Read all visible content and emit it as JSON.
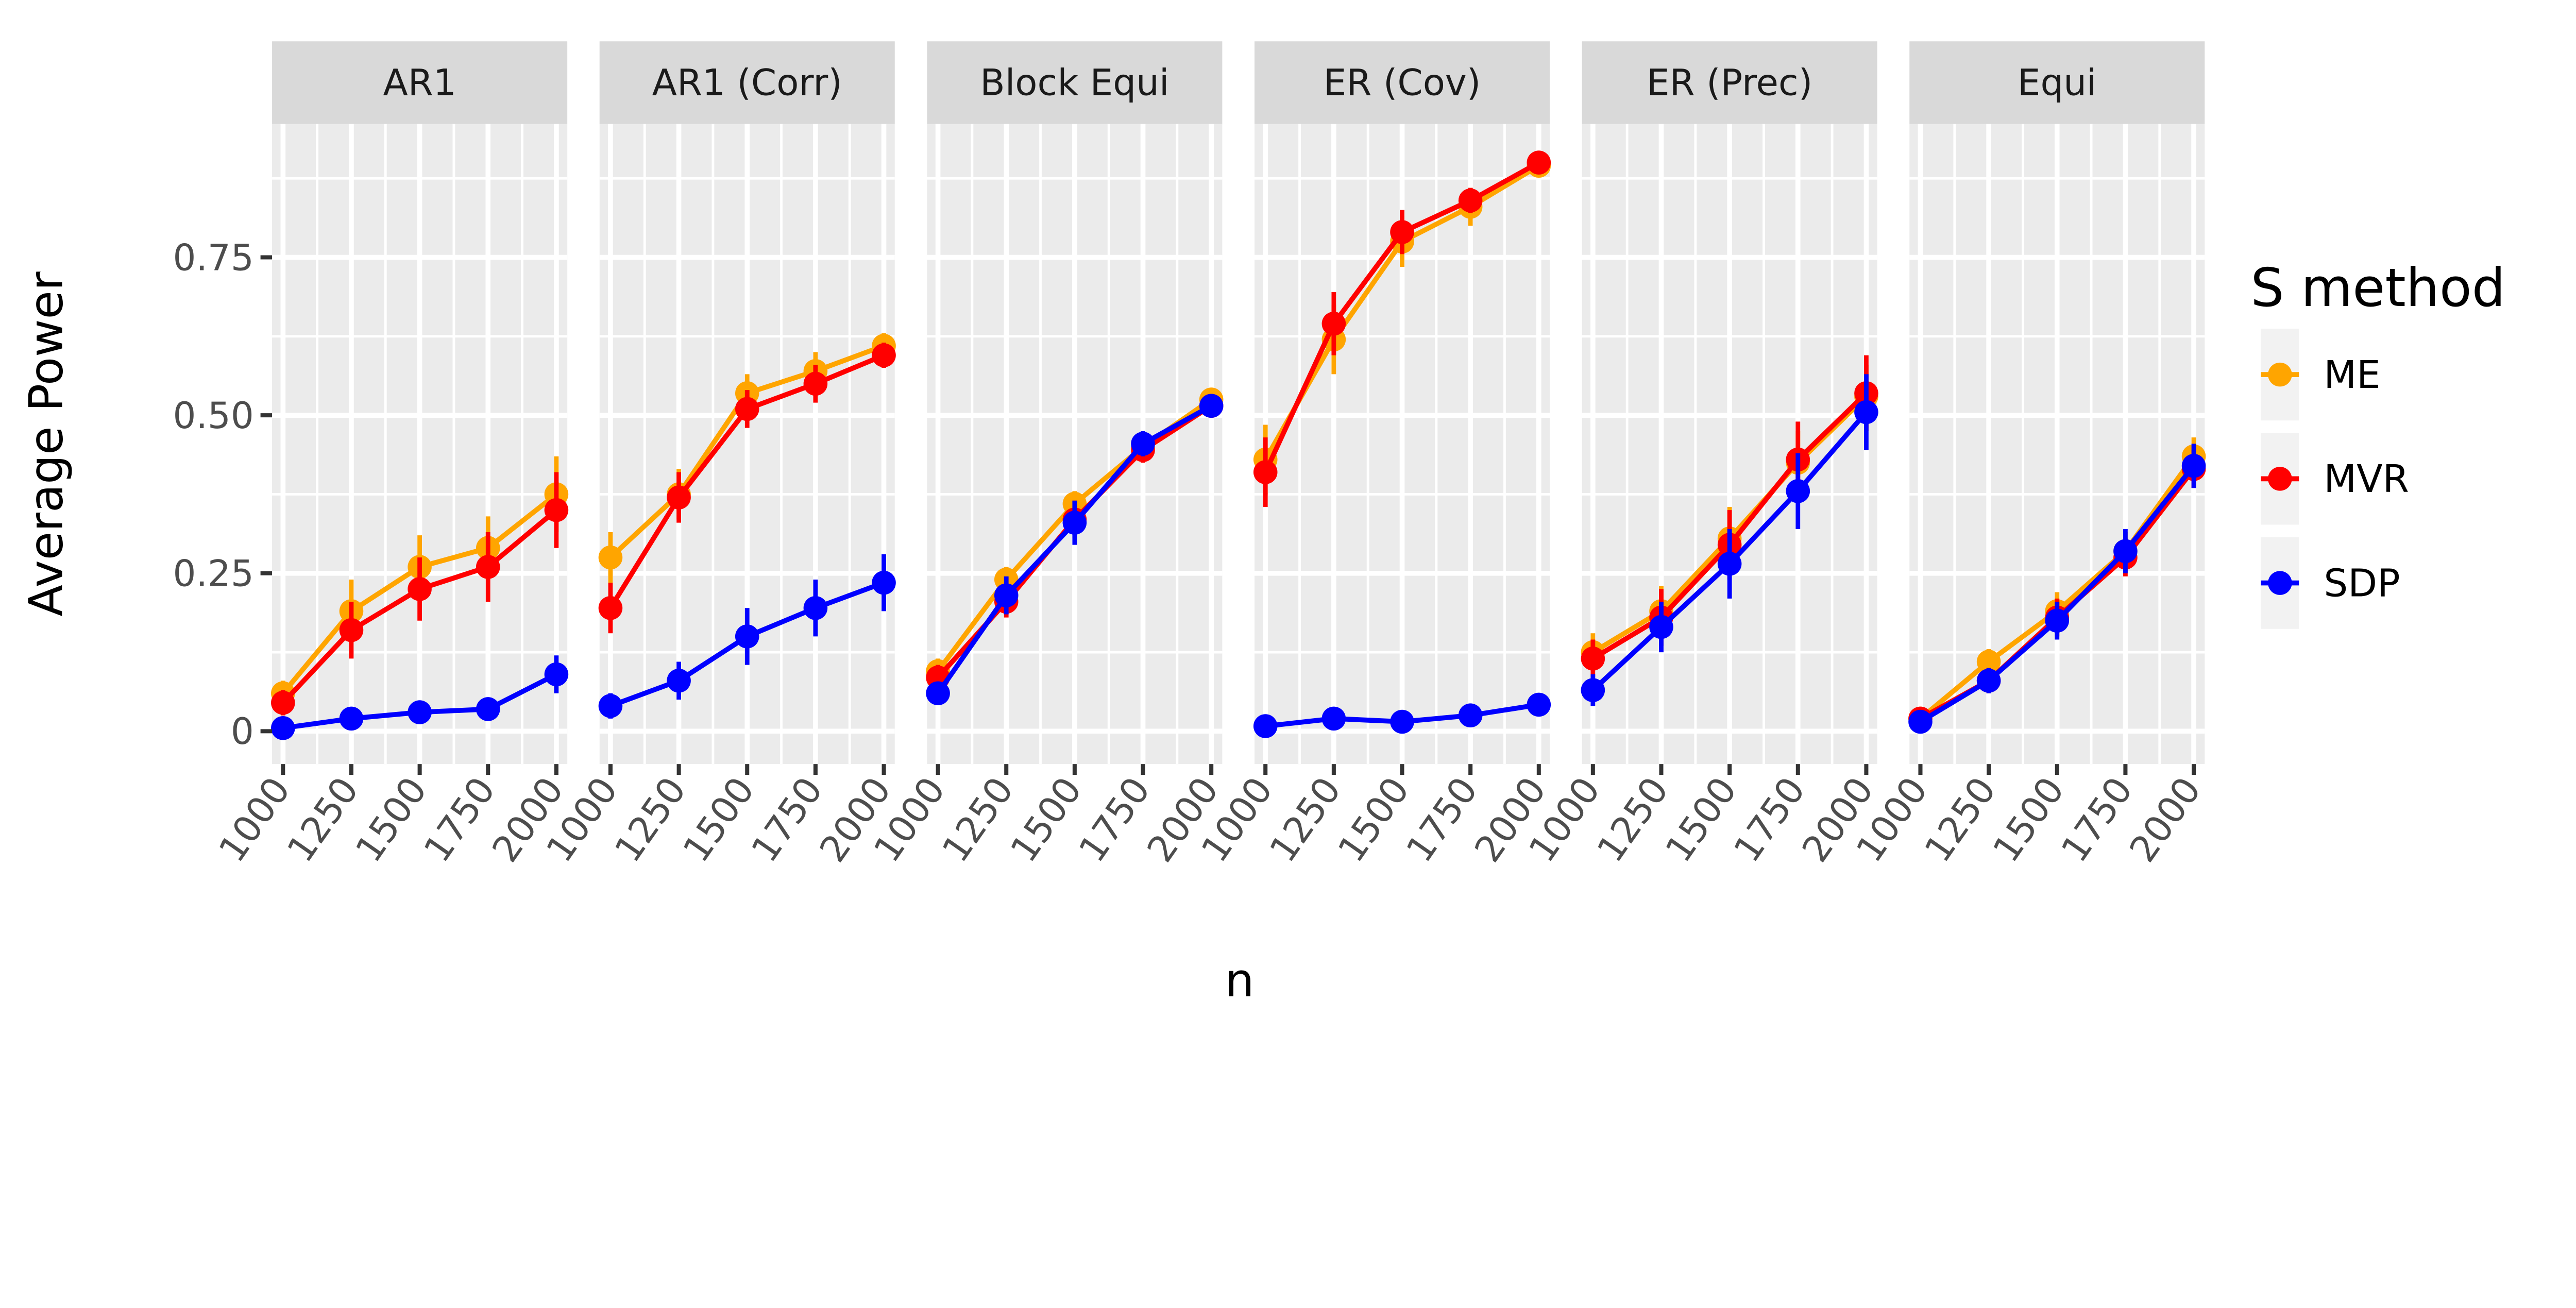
{
  "chart_data": {
    "type": "line",
    "facet_by": "covariance",
    "x": [
      1000,
      1250,
      1500,
      1750,
      2000
    ],
    "x_ticks": [
      "1000",
      "1250",
      "1500",
      "1750",
      "2000"
    ],
    "y_ticks": [
      "0",
      "0.25",
      "0.50",
      "0.75"
    ],
    "y_tick_values": [
      0,
      0.25,
      0.5,
      0.75
    ],
    "xlabel": "n",
    "ylabel": "Average Power",
    "xlim": [
      960,
      2040
    ],
    "ylim": [
      -0.052,
      0.961
    ],
    "grid": true,
    "legend": {
      "title": "S method",
      "placement": "right",
      "entries": [
        {
          "name": "ME",
          "color": "#FFA500"
        },
        {
          "name": "MVR",
          "color": "#FF0000"
        },
        {
          "name": "SDP",
          "color": "#0000FF"
        }
      ]
    },
    "panels": [
      {
        "title": "AR1",
        "series": [
          {
            "name": "ME",
            "values": [
              0.06,
              0.19,
              0.26,
              0.29,
              0.375
            ],
            "err": [
              0.02,
              0.05,
              0.05,
              0.05,
              0.06
            ]
          },
          {
            "name": "MVR",
            "values": [
              0.045,
              0.16,
              0.225,
              0.26,
              0.35
            ],
            "err": [
              0.02,
              0.045,
              0.05,
              0.055,
              0.06
            ]
          },
          {
            "name": "SDP",
            "values": [
              0.005,
              0.02,
              0.03,
              0.035,
              0.09
            ],
            "err": [
              0.008,
              0.01,
              0.01,
              0.012,
              0.03
            ]
          }
        ]
      },
      {
        "title": "AR1 (Corr)",
        "series": [
          {
            "name": "ME",
            "values": [
              0.275,
              0.375,
              0.535,
              0.57,
              0.61
            ],
            "err": [
              0.04,
              0.04,
              0.03,
              0.03,
              0.02
            ]
          },
          {
            "name": "MVR",
            "values": [
              0.195,
              0.37,
              0.51,
              0.55,
              0.595
            ],
            "err": [
              0.04,
              0.04,
              0.03,
              0.03,
              0.02
            ]
          },
          {
            "name": "SDP",
            "values": [
              0.04,
              0.08,
              0.15,
              0.195,
              0.235
            ],
            "err": [
              0.02,
              0.03,
              0.045,
              0.045,
              0.045
            ]
          }
        ]
      },
      {
        "title": "Block Equi",
        "series": [
          {
            "name": "ME",
            "values": [
              0.095,
              0.24,
              0.36,
              0.45,
              0.525
            ],
            "err": [
              0.02,
              0.02,
              0.02,
              0.02,
              0.01
            ]
          },
          {
            "name": "MVR",
            "values": [
              0.085,
              0.205,
              0.335,
              0.445,
              0.515
            ],
            "err": [
              0.02,
              0.025,
              0.03,
              0.02,
              0.01
            ]
          },
          {
            "name": "SDP",
            "values": [
              0.06,
              0.215,
              0.33,
              0.455,
              0.515
            ],
            "err": [
              0.01,
              0.03,
              0.035,
              0.02,
              0.015
            ]
          }
        ]
      },
      {
        "title": "ER (Cov)",
        "series": [
          {
            "name": "ME",
            "values": [
              0.43,
              0.62,
              0.775,
              0.83,
              0.895
            ],
            "err": [
              0.055,
              0.055,
              0.04,
              0.03,
              0.015
            ]
          },
          {
            "name": "MVR",
            "values": [
              0.41,
              0.645,
              0.79,
              0.84,
              0.9
            ],
            "err": [
              0.055,
              0.05,
              0.035,
              0.02,
              0.01
            ]
          },
          {
            "name": "SDP",
            "values": [
              0.008,
              0.02,
              0.015,
              0.025,
              0.042
            ],
            "err": [
              0.005,
              0.005,
              0.005,
              0.005,
              0.015
            ]
          }
        ]
      },
      {
        "title": "ER (Prec)",
        "series": [
          {
            "name": "ME",
            "values": [
              0.125,
              0.19,
              0.305,
              0.425,
              0.53
            ],
            "err": [
              0.03,
              0.04,
              0.05,
              0.05,
              0.05
            ]
          },
          {
            "name": "MVR",
            "values": [
              0.115,
              0.18,
              0.295,
              0.43,
              0.535
            ],
            "err": [
              0.03,
              0.045,
              0.055,
              0.06,
              0.06
            ]
          },
          {
            "name": "SDP",
            "values": [
              0.065,
              0.165,
              0.265,
              0.38,
              0.505
            ],
            "err": [
              0.025,
              0.04,
              0.055,
              0.06,
              0.06
            ]
          }
        ]
      },
      {
        "title": "Equi",
        "series": [
          {
            "name": "ME",
            "values": [
              0.02,
              0.11,
              0.19,
              0.285,
              0.435
            ],
            "err": [
              0.005,
              0.02,
              0.03,
              0.03,
              0.03
            ]
          },
          {
            "name": "MVR",
            "values": [
              0.02,
              0.08,
              0.18,
              0.275,
              0.415
            ],
            "err": [
              0.005,
              0.02,
              0.03,
              0.03,
              0.03
            ]
          },
          {
            "name": "SDP",
            "values": [
              0.015,
              0.08,
              0.175,
              0.285,
              0.42
            ],
            "err": [
              0.005,
              0.02,
              0.03,
              0.035,
              0.035
            ]
          }
        ]
      }
    ]
  },
  "colors": {
    "panel_bg": "#EBEBEB",
    "strip_bg": "#D9D9D9",
    "legend_key_bg": "#F2F2F2",
    "grid": "#FFFFFF"
  }
}
